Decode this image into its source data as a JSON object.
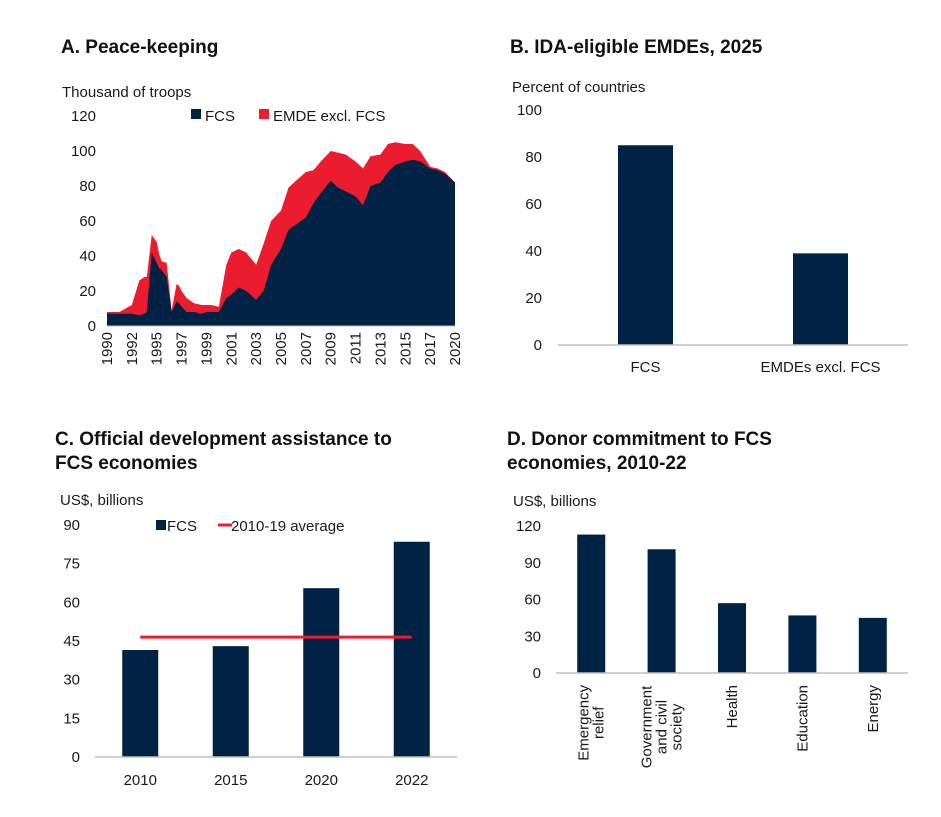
{
  "colors": {
    "navy": "#002244",
    "red": "#eb1c2d",
    "axis": "#bfbfbf"
  },
  "chart_data": [
    {
      "id": "A",
      "type": "area",
      "stacked": true,
      "title": "A. Peace-keeping",
      "ylabel": "Thousand of troops",
      "ylim": [
        0,
        120
      ],
      "yticks": [
        0,
        20,
        40,
        60,
        80,
        100,
        120
      ],
      "xtick_labels": [
        "1990",
        "1992",
        "1995",
        "1997",
        "1999",
        "2001",
        "2003",
        "2005",
        "2007",
        "2009",
        "2011",
        "2013",
        "2015",
        "2017",
        "2020"
      ],
      "x_index_range": [
        0,
        14
      ],
      "legend": [
        {
          "name": "FCS",
          "color": "#002244"
        },
        {
          "name": "EMDE excl. FCS",
          "color": "#eb1c2d"
        }
      ],
      "legend_position": "top",
      "x": [
        0,
        0.5,
        1,
        1.3,
        1.5,
        1.6,
        1.8,
        2.0,
        2.1,
        2.2,
        2.4,
        2.6,
        2.8,
        2.9,
        3.0,
        3.2,
        3.5,
        3.8,
        4.0,
        4.2,
        4.5,
        4.8,
        5.0,
        5.3,
        5.6,
        6.0,
        6.3,
        6.6,
        7.0,
        7.3,
        7.6,
        8.0,
        8.3,
        8.6,
        9.0,
        9.3,
        9.6,
        10.0,
        10.3,
        10.6,
        11.0,
        11.3,
        11.6,
        12.0,
        12.3,
        12.6,
        13.0,
        13.3,
        13.6,
        14.0
      ],
      "series": [
        {
          "name": "FCS",
          "values": [
            7,
            7,
            7,
            6,
            7,
            8,
            42,
            36,
            33,
            32,
            28,
            8,
            14,
            13,
            11,
            8,
            8,
            7,
            8,
            8,
            8,
            16,
            18,
            22,
            20,
            15,
            20,
            35,
            44,
            55,
            58,
            62,
            70,
            76,
            83,
            79,
            77,
            74,
            69,
            80,
            82,
            88,
            92,
            94,
            95,
            94,
            90,
            89,
            87,
            82
          ]
        },
        {
          "name": "EMDE excl. FCS",
          "values": [
            1,
            1,
            5,
            20,
            21,
            20,
            10,
            12,
            8,
            5,
            8,
            1,
            10,
            10,
            9,
            8,
            5,
            5,
            4,
            4,
            3,
            19,
            24,
            22,
            22,
            20,
            27,
            25,
            22,
            24,
            25,
            26,
            19,
            18,
            17,
            20,
            21,
            20,
            21,
            17,
            16,
            16,
            13,
            10,
            9,
            6,
            1,
            1,
            1,
            0
          ]
        }
      ]
    },
    {
      "id": "B",
      "type": "bar",
      "title": "B. IDA-eligible EMDEs, 2025",
      "ylabel": "Percent of countries",
      "ylim": [
        0,
        100
      ],
      "yticks": [
        0,
        20,
        40,
        60,
        80,
        100
      ],
      "categories": [
        "FCS",
        "EMDEs excl. FCS"
      ],
      "values": [
        85,
        39
      ]
    },
    {
      "id": "C",
      "type": "bar",
      "title": "C. Official development assistance to FCS economies",
      "title_lines": [
        "C. Official development assistance to",
        "FCS economies"
      ],
      "ylabel": "US$, billions",
      "ylim": [
        0,
        90
      ],
      "yticks": [
        0,
        15,
        30,
        45,
        60,
        75,
        90
      ],
      "categories": [
        "2010",
        "2015",
        "2020",
        "2022"
      ],
      "series": [
        {
          "name": "FCS",
          "values": [
            41.5,
            43,
            65.5,
            83.5
          ]
        }
      ],
      "reference_line": {
        "name": "2010-19 average",
        "value": 46.5
      },
      "legend": [
        {
          "name": "FCS",
          "type": "box",
          "color": "#002244"
        },
        {
          "name": "2010-19 average",
          "type": "line",
          "color": "#eb1c2d"
        }
      ],
      "legend_position": "top"
    },
    {
      "id": "D",
      "type": "bar",
      "title": "D. Donor commitment to FCS economies, 2010-22",
      "title_lines": [
        "D. Donor commitment to FCS",
        "economies, 2010-22"
      ],
      "ylabel": "US$, billions",
      "ylim": [
        0,
        120
      ],
      "yticks": [
        0,
        30,
        60,
        90,
        120
      ],
      "categories": [
        "Emergency relief",
        "Government and civil society",
        "Health",
        "Education",
        "Energy"
      ],
      "category_lines": [
        [
          "Emergency",
          "relief"
        ],
        [
          "Government",
          "and civil",
          "society"
        ],
        [
          "Health"
        ],
        [
          "Education"
        ],
        [
          "Energy"
        ]
      ],
      "values": [
        113,
        101,
        57,
        47,
        45
      ]
    }
  ]
}
